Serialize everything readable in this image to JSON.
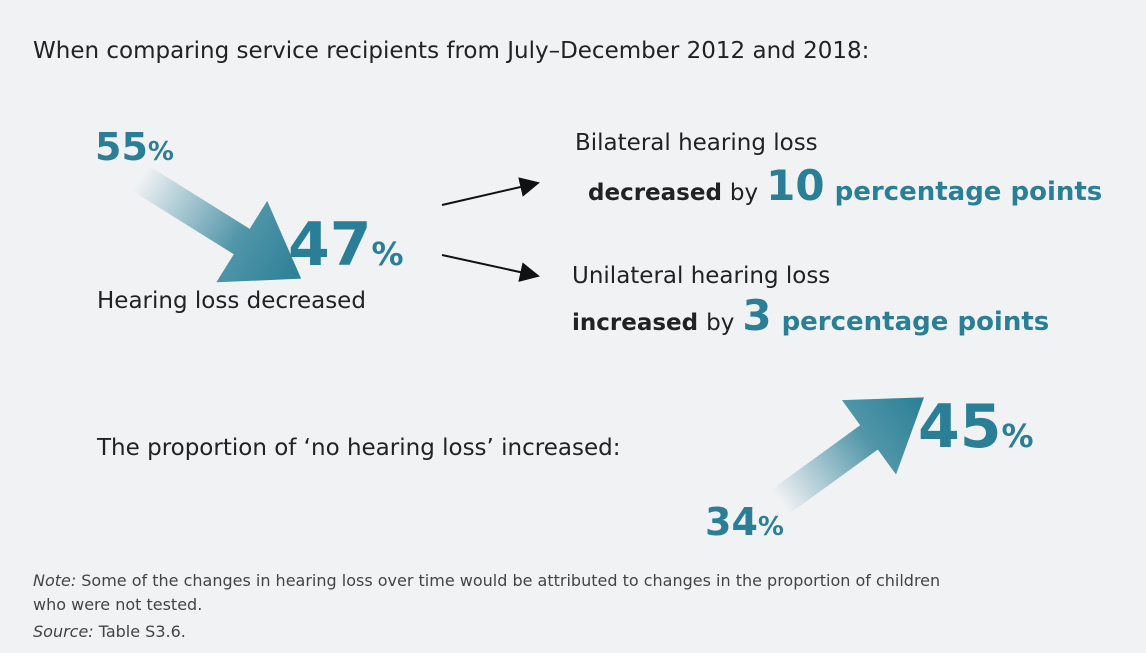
{
  "intro": "When comparing service recipients from July–December 2012 and 2018:",
  "unit": "%",
  "hearing_loss": {
    "from": 55,
    "to": 47,
    "label": "Hearing loss decreased"
  },
  "changes": [
    {
      "label": "Bilateral hearing loss",
      "direction": "decreased",
      "by": "by",
      "amount": 10,
      "measure": "percentage points"
    },
    {
      "label": "Unilateral hearing loss",
      "direction": "increased",
      "by": "by",
      "amount": 3,
      "measure": "percentage points"
    }
  ],
  "no_hearing_loss": {
    "label": "The proportion of ‘no hearing loss’ increased:",
    "from": 34,
    "to": 45
  },
  "note": {
    "label": "Note:",
    "text": "Some of the changes in hearing loss over time would be attributed to changes in the proportion of children",
    "text2": "who were not tested."
  },
  "source": {
    "label": "Source:",
    "text": "Table S3.6."
  }
}
